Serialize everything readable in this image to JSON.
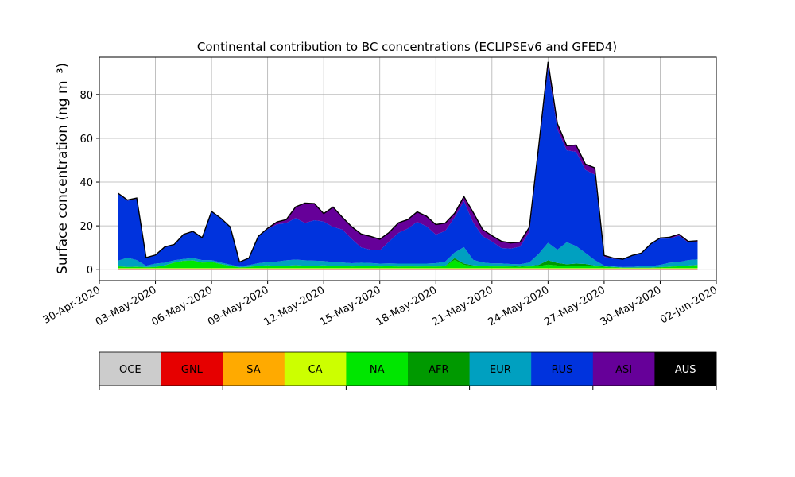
{
  "chart_data": {
    "type": "area",
    "stacked": true,
    "title": "Continental contribution to BC concentrations (ECLIPSEv6 and GFED4)",
    "ylabel": "Surface concentration (ng m⁻³)",
    "xlabel": "",
    "xlim": [
      "2020-04-30",
      "2020-06-02"
    ],
    "ylim": [
      -5,
      97
    ],
    "grid": true,
    "x_ticks": [
      "30-Apr-2020",
      "03-May-2020",
      "06-May-2020",
      "09-May-2020",
      "12-May-2020",
      "15-May-2020",
      "18-May-2020",
      "21-May-2020",
      "24-May-2020",
      "27-May-2020",
      "30-May-2020",
      "02-Jun-2020"
    ],
    "y_ticks": [
      0,
      20,
      40,
      60,
      80
    ],
    "x_dates": [
      "2020-05-01",
      "2020-05-01 12:00",
      "2020-05-02",
      "2020-05-02 12:00",
      "2020-05-03",
      "2020-05-03 12:00",
      "2020-05-04",
      "2020-05-04 12:00",
      "2020-05-05",
      "2020-05-05 12:00",
      "2020-05-06",
      "2020-05-06 12:00",
      "2020-05-07",
      "2020-05-07 12:00",
      "2020-05-08",
      "2020-05-08 12:00",
      "2020-05-09",
      "2020-05-09 12:00",
      "2020-05-10",
      "2020-05-10 12:00",
      "2020-05-11",
      "2020-05-11 12:00",
      "2020-05-12",
      "2020-05-12 12:00",
      "2020-05-13",
      "2020-05-13 12:00",
      "2020-05-14",
      "2020-05-14 12:00",
      "2020-05-15",
      "2020-05-15 12:00",
      "2020-05-16",
      "2020-05-16 12:00",
      "2020-05-17",
      "2020-05-17 12:00",
      "2020-05-18",
      "2020-05-18 12:00",
      "2020-05-19",
      "2020-05-19 12:00",
      "2020-05-20",
      "2020-05-20 12:00",
      "2020-05-21",
      "2020-05-21 12:00",
      "2020-05-22",
      "2020-05-22 12:00",
      "2020-05-23",
      "2020-05-23 12:00",
      "2020-05-24",
      "2020-05-24 12:00",
      "2020-05-25",
      "2020-05-25 12:00",
      "2020-05-26",
      "2020-05-26 12:00",
      "2020-05-27",
      "2020-05-27 12:00",
      "2020-05-28",
      "2020-05-28 12:00",
      "2020-05-29",
      "2020-05-29 12:00",
      "2020-05-30",
      "2020-05-30 12:00",
      "2020-05-31",
      "2020-05-31 12:00",
      "2020-06-01"
    ],
    "series": [
      {
        "name": "OCE",
        "color": "#cccccc",
        "values": [
          0.3,
          0.3,
          0.3,
          0.3,
          0.3,
          0.3,
          0.3,
          0.3,
          0.3,
          0.3,
          0.3,
          0.3,
          0.3,
          0.3,
          0.3,
          0.3,
          0.3,
          0.3,
          0.3,
          0.3,
          0.3,
          0.3,
          0.3,
          0.3,
          0.3,
          0.3,
          0.3,
          0.3,
          0.3,
          0.3,
          0.3,
          0.3,
          0.3,
          0.3,
          0.3,
          0.3,
          0.3,
          0.3,
          0.3,
          0.3,
          0.3,
          0.3,
          0.3,
          0.3,
          0.3,
          0.3,
          0.3,
          0.3,
          0.3,
          0.3,
          0.3,
          0.3,
          0.3,
          0.3,
          0.3,
          0.3,
          0.3,
          0.3,
          0.3,
          0.3,
          0.3,
          0.3,
          0.3
        ]
      },
      {
        "name": "GNL",
        "color": "#e60000",
        "values": [
          0.1,
          0.1,
          0.1,
          0.1,
          0.1,
          0.1,
          0.1,
          0.1,
          0.1,
          0.1,
          0.1,
          0.1,
          0.1,
          0.1,
          0.1,
          0.1,
          0.1,
          0.1,
          0.1,
          0.1,
          0.1,
          0.1,
          0.1,
          0.1,
          0.1,
          0.1,
          0.1,
          0.1,
          0.1,
          0.1,
          0.1,
          0.1,
          0.1,
          0.1,
          0.1,
          0.1,
          0.1,
          0.1,
          0.1,
          0.1,
          0.1,
          0.1,
          0.1,
          0.1,
          0.1,
          0.1,
          0.1,
          0.1,
          0.1,
          0.1,
          0.1,
          0.1,
          0.1,
          0.1,
          0.1,
          0.1,
          0.1,
          0.1,
          0.1,
          0.1,
          0.1,
          0.1,
          0.1
        ]
      },
      {
        "name": "SA",
        "color": "#ffaa00",
        "values": [
          0.1,
          0.1,
          0.1,
          0.1,
          0.1,
          0.1,
          0.1,
          0.1,
          0.1,
          0.1,
          0.1,
          0.1,
          0.1,
          0.1,
          0.1,
          0.1,
          0.1,
          0.1,
          0.1,
          0.1,
          0.1,
          0.1,
          0.1,
          0.1,
          0.1,
          0.1,
          0.1,
          0.1,
          0.1,
          0.1,
          0.1,
          0.1,
          0.1,
          0.1,
          0.1,
          0.1,
          0.1,
          0.1,
          0.1,
          0.1,
          0.1,
          0.1,
          0.1,
          0.1,
          0.1,
          0.1,
          0.1,
          0.1,
          0.1,
          0.1,
          0.1,
          0.1,
          0.1,
          0.1,
          0.1,
          0.1,
          0.1,
          0.1,
          0.1,
          0.1,
          0.1,
          0.1,
          0.1
        ]
      },
      {
        "name": "CA",
        "color": "#ccff00",
        "values": [
          0.2,
          0.2,
          0.2,
          0.2,
          0.2,
          0.2,
          0.2,
          0.2,
          0.2,
          0.2,
          0.2,
          0.2,
          0.2,
          0.2,
          0.2,
          0.2,
          0.2,
          0.2,
          0.2,
          0.2,
          0.2,
          0.2,
          0.2,
          0.2,
          0.2,
          0.2,
          0.2,
          0.2,
          0.2,
          0.2,
          0.2,
          0.2,
          0.2,
          0.2,
          0.2,
          0.2,
          0.2,
          0.2,
          0.2,
          0.2,
          0.2,
          0.2,
          0.2,
          0.2,
          0.2,
          0.2,
          0.2,
          0.2,
          0.2,
          0.2,
          0.2,
          0.2,
          0.2,
          0.2,
          0.2,
          0.2,
          0.2,
          0.2,
          0.2,
          0.2,
          0.2,
          0.2,
          0.2
        ]
      },
      {
        "name": "NA",
        "color": "#00e600",
        "values": [
          0.8,
          0.5,
          0.6,
          0.4,
          0.5,
          1.2,
          2.5,
          3.3,
          3.5,
          2.5,
          2.8,
          1.8,
          1.0,
          0.3,
          0.5,
          1.0,
          1.2,
          0.9,
          1.0,
          1.3,
          1.0,
          1.0,
          1.2,
          0.9,
          1.0,
          0.8,
          0.9,
          1.0,
          0.8,
          0.9,
          0.7,
          0.8,
          0.7,
          0.8,
          0.7,
          0.9,
          3.8,
          1.5,
          1.0,
          0.9,
          0.8,
          0.8,
          0.7,
          0.6,
          0.8,
          0.9,
          1.6,
          1.2,
          1.0,
          1.1,
          1.0,
          0.8,
          0.6,
          0.4,
          0.2,
          0.2,
          0.2,
          0.2,
          0.4,
          0.6,
          0.9,
          1.1,
          1.4
        ]
      },
      {
        "name": "AFR",
        "color": "#009900",
        "values": [
          0.1,
          0.1,
          0.1,
          0.1,
          0.1,
          0.1,
          0.1,
          0.1,
          0.1,
          0.1,
          0.1,
          0.1,
          0.1,
          0.1,
          0.1,
          0.1,
          0.1,
          0.1,
          0.1,
          0.1,
          0.1,
          0.1,
          0.1,
          0.1,
          0.1,
          0.1,
          0.1,
          0.1,
          0.1,
          0.1,
          0.1,
          0.1,
          0.1,
          0.1,
          0.1,
          0.1,
          0.8,
          0.6,
          0.3,
          0.2,
          0.2,
          0.2,
          0.2,
          0.2,
          0.3,
          0.6,
          2.0,
          1.2,
          0.8,
          1.0,
          0.9,
          0.4,
          0.2,
          0.1,
          0.1,
          0.1,
          0.1,
          0.1,
          0.1,
          0.1,
          0.1,
          0.1,
          0.1
        ]
      },
      {
        "name": "EUR",
        "color": "#00a0c0",
        "values": [
          2.5,
          4.2,
          3.0,
          0.6,
          1.5,
          1.2,
          1.0,
          0.8,
          1.0,
          1.1,
          0.8,
          0.7,
          0.5,
          0.3,
          0.8,
          1.2,
          1.5,
          2.0,
          2.5,
          2.5,
          2.5,
          2.3,
          2.0,
          1.8,
          1.5,
          1.4,
          1.5,
          1.3,
          1.2,
          1.2,
          1.3,
          1.2,
          1.3,
          1.2,
          1.5,
          2.0,
          2.5,
          7.5,
          2.5,
          1.5,
          1.2,
          1.2,
          1.0,
          1.0,
          1.5,
          5.0,
          8.0,
          6.0,
          10.0,
          8.0,
          5.0,
          2.5,
          0.4,
          0.3,
          0.2,
          0.3,
          0.6,
          0.6,
          1.0,
          1.8,
          1.8,
          2.5,
          2.5
        ]
      },
      {
        "name": "RUS",
        "color": "#0033dd",
        "values": [
          30.5,
          26.0,
          28.0,
          3.5,
          3.7,
          7.0,
          7.0,
          11.0,
          12.0,
          10.0,
          22.0,
          20.0,
          17.0,
          1.9,
          3.0,
          12.0,
          15.0,
          17.0,
          17.0,
          19.0,
          17.0,
          18.5,
          18.0,
          16.0,
          15.0,
          11.0,
          7.0,
          6.0,
          6.0,
          10.0,
          14.0,
          16.0,
          19.0,
          17.0,
          13.0,
          14.0,
          16.0,
          21.0,
          17.0,
          12.0,
          10.0,
          7.0,
          7.0,
          8.0,
          14.0,
          47.0,
          80.0,
          55.0,
          42.0,
          43.0,
          38.0,
          39.0,
          4.0,
          3.5,
          3.4,
          5.0,
          5.8,
          10.0,
          12.0,
          11.0,
          12.0,
          8.0,
          8.0
        ]
      },
      {
        "name": "ASI",
        "color": "#660099",
        "values": [
          0.2,
          0.2,
          0.2,
          0.1,
          0.1,
          0.1,
          0.1,
          0.1,
          0.1,
          0.1,
          0.1,
          0.1,
          0.1,
          0.1,
          0.1,
          0.1,
          0.3,
          1.0,
          1.5,
          5.0,
          9.0,
          7.5,
          3.5,
          9.0,
          5.5,
          5.5,
          6.0,
          6.0,
          5.0,
          4.0,
          4.5,
          4.0,
          4.5,
          4.5,
          4.5,
          3.5,
          1.8,
          2.0,
          4.5,
          3.0,
          2.5,
          3.0,
          2.5,
          2.0,
          2.0,
          2.0,
          2.5,
          2.5,
          2.0,
          3.0,
          2.5,
          3.0,
          0.5,
          0.2,
          0.1,
          0.1,
          0.1,
          0.1,
          0.2,
          0.5,
          0.6,
          0.4,
          0.4
        ]
      },
      {
        "name": "AUS",
        "color": "#000000",
        "values": [
          0.1,
          0.1,
          0.1,
          0.1,
          0.1,
          0.1,
          0.1,
          0.1,
          0.1,
          0.1,
          0.1,
          0.1,
          0.1,
          0.1,
          0.1,
          0.1,
          0.1,
          0.1,
          0.1,
          0.1,
          0.1,
          0.1,
          0.1,
          0.1,
          0.1,
          0.1,
          0.1,
          0.1,
          0.1,
          0.1,
          0.1,
          0.1,
          0.1,
          0.1,
          0.1,
          0.1,
          0.1,
          0.1,
          0.1,
          0.1,
          0.1,
          0.1,
          0.1,
          0.1,
          0.1,
          0.1,
          0.1,
          0.1,
          0.1,
          0.1,
          0.1,
          0.1,
          0.1,
          0.1,
          0.1,
          0.1,
          0.1,
          0.1,
          0.1,
          0.1,
          0.1,
          0.1,
          0.1
        ]
      }
    ]
  },
  "legend": {
    "entries": [
      {
        "label": "OCE",
        "color": "#cccccc",
        "text_color": "#000000"
      },
      {
        "label": "GNL",
        "color": "#e60000",
        "text_color": "#000000"
      },
      {
        "label": "SA",
        "color": "#ffaa00",
        "text_color": "#000000"
      },
      {
        "label": "CA",
        "color": "#ccff00",
        "text_color": "#000000"
      },
      {
        "label": "NA",
        "color": "#00e600",
        "text_color": "#000000"
      },
      {
        "label": "AFR",
        "color": "#009900",
        "text_color": "#000000"
      },
      {
        "label": "EUR",
        "color": "#00a0c0",
        "text_color": "#000000"
      },
      {
        "label": "RUS",
        "color": "#0033dd",
        "text_color": "#000000"
      },
      {
        "label": "ASI",
        "color": "#660099",
        "text_color": "#000000"
      },
      {
        "label": "AUS",
        "color": "#000000",
        "text_color": "#ffffff"
      }
    ]
  }
}
